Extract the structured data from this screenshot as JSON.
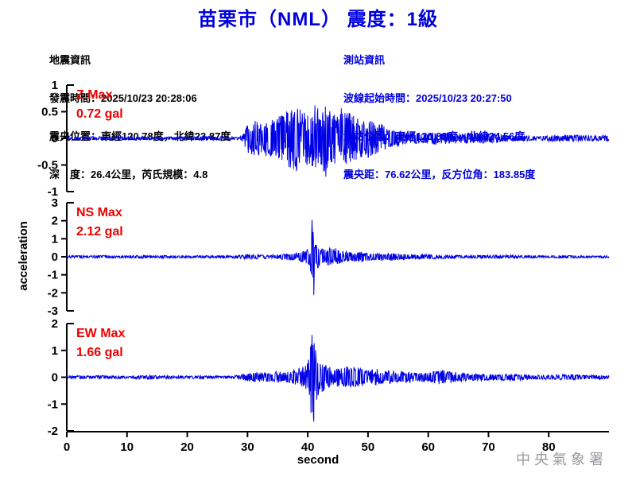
{
  "title": "苗栗市（NML） 震度：1級",
  "header": {
    "left": {
      "lines": [
        "地震資訊",
        "發震時間：2025/10/23 20:28:06",
        "震央位置：東經120.78度，北緯23.87度",
        "深　度：26.4公里，芮氏規模：4.8"
      ]
    },
    "right": {
      "lines": [
        "測站資訊",
        "波線起始時間：2025/10/23 20:27:50",
        "測站位置：東經120.83度，北緯24.56度",
        "震央距：76.62公里，反方位角：183.85度"
      ]
    }
  },
  "footer": {
    "watermark": "中央氣象署"
  },
  "colors": {
    "title_blue": "#0000dd",
    "info_blue": "#0000dd",
    "waveform_blue": "#0000e6",
    "max_label_red": "#ee0000",
    "axis_black": "#000000",
    "watermark_gray": "#9a9aa0"
  },
  "chart_data": {
    "type": "line",
    "title": "苗栗市（NML） 震度：1級",
    "ylabel": "acceleration",
    "xlabel": "second",
    "x": {
      "range": [
        0,
        90
      ],
      "ticks": [
        0,
        10,
        20,
        30,
        40,
        50,
        60,
        70,
        80
      ]
    },
    "grid": false,
    "charts": [
      {
        "channel": "Z",
        "label_lines": [
          "Z Max",
          "0.72 gal"
        ],
        "max_gal": 0.72,
        "ylim": [
          -1,
          1
        ],
        "yticks": [
          1,
          0.5,
          0,
          -0.5,
          -1
        ],
        "onset_s": 30,
        "peak_s": 42,
        "envelope_gal": [
          [
            0,
            0.035
          ],
          [
            29,
            0.035
          ],
          [
            30,
            0.25
          ],
          [
            31,
            0.3
          ],
          [
            33,
            0.33
          ],
          [
            35,
            0.38
          ],
          [
            37,
            0.45
          ],
          [
            39,
            0.5
          ],
          [
            41,
            0.6
          ],
          [
            42.5,
            0.66
          ],
          [
            44,
            0.55
          ],
          [
            46,
            0.48
          ],
          [
            48,
            0.38
          ],
          [
            50,
            0.3
          ],
          [
            52,
            0.22
          ],
          [
            55,
            0.16
          ],
          [
            58,
            0.12
          ],
          [
            62,
            0.1
          ],
          [
            66,
            0.08
          ],
          [
            70,
            0.07
          ],
          [
            80,
            0.055
          ],
          [
            90,
            0.045
          ]
        ],
        "peaks": [
          [
            41.2,
            0.62
          ],
          [
            43.0,
            -0.72
          ]
        ]
      },
      {
        "channel": "NS",
        "label_lines": [
          "NS Max",
          "2.12 gal"
        ],
        "max_gal": 2.12,
        "ylim": [
          -3,
          3
        ],
        "yticks": [
          3,
          2,
          1,
          0,
          -1,
          -2,
          -3
        ],
        "onset_s": 30,
        "peak_s": 41,
        "envelope_gal": [
          [
            0,
            0.07
          ],
          [
            28,
            0.07
          ],
          [
            29,
            0.08
          ],
          [
            30,
            0.12
          ],
          [
            33,
            0.13
          ],
          [
            36,
            0.16
          ],
          [
            38,
            0.22
          ],
          [
            39.5,
            0.3
          ],
          [
            40.3,
            0.5
          ],
          [
            40.7,
            1.9
          ],
          [
            41.2,
            1.1
          ],
          [
            41.8,
            0.75
          ],
          [
            43,
            0.6
          ],
          [
            45,
            0.45
          ],
          [
            47,
            0.35
          ],
          [
            50,
            0.28
          ],
          [
            53,
            0.22
          ],
          [
            57,
            0.17
          ],
          [
            60,
            0.14
          ],
          [
            65,
            0.11
          ],
          [
            70,
            0.09
          ],
          [
            80,
            0.07
          ],
          [
            90,
            0.06
          ]
        ],
        "peaks": [
          [
            40.7,
            2.05
          ],
          [
            41.0,
            -2.12
          ]
        ]
      },
      {
        "channel": "EW",
        "label_lines": [
          "EW Max",
          "1.66 gal"
        ],
        "max_gal": 1.66,
        "ylim": [
          -2,
          2
        ],
        "yticks": [
          2,
          1,
          0,
          -1,
          -2
        ],
        "onset_s": 30,
        "peak_s": 41,
        "envelope_gal": [
          [
            0,
            0.055
          ],
          [
            28,
            0.055
          ],
          [
            30,
            0.15
          ],
          [
            33,
            0.18
          ],
          [
            36,
            0.22
          ],
          [
            38,
            0.3
          ],
          [
            39.5,
            0.4
          ],
          [
            40.3,
            0.6
          ],
          [
            40.7,
            1.5
          ],
          [
            41.2,
            0.95
          ],
          [
            42,
            0.7
          ],
          [
            43,
            0.6
          ],
          [
            45,
            0.5
          ],
          [
            47,
            0.4
          ],
          [
            50,
            0.32
          ],
          [
            53,
            0.27
          ],
          [
            56,
            0.22
          ],
          [
            59,
            0.22
          ],
          [
            62,
            0.26
          ],
          [
            64,
            0.22
          ],
          [
            67,
            0.16
          ],
          [
            70,
            0.12
          ],
          [
            75,
            0.1
          ],
          [
            80,
            0.08
          ],
          [
            90,
            0.065
          ]
        ],
        "peaks": [
          [
            40.7,
            1.58
          ],
          [
            41.0,
            -1.66
          ]
        ]
      }
    ]
  }
}
